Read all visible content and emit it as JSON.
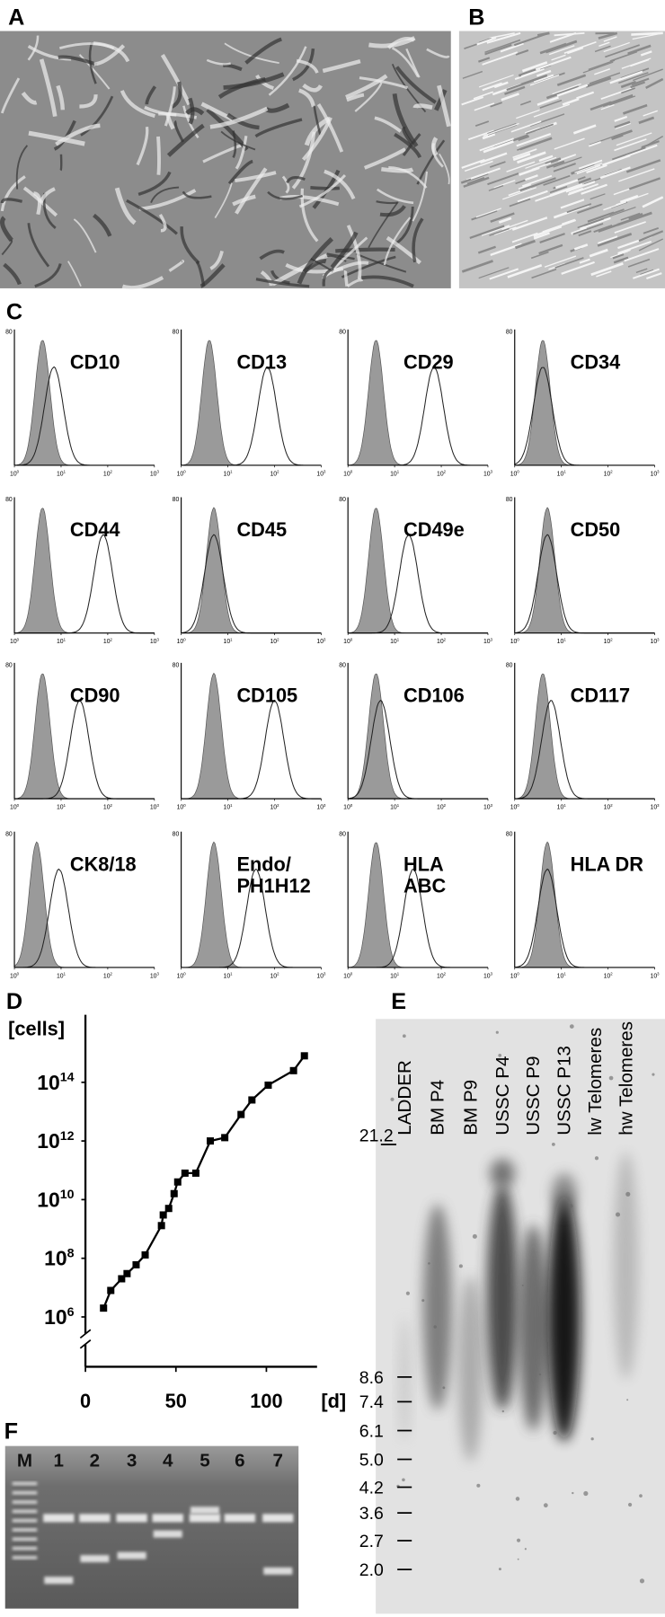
{
  "panel_labels": [
    "A",
    "B",
    "C",
    "D",
    "E",
    "F"
  ],
  "flow": {
    "y_tick": "80",
    "x_ticks": [
      {
        "value": 1,
        "label": "10",
        "exponent": "0"
      },
      {
        "value": 10,
        "label": "10",
        "exponent": "1"
      },
      {
        "value": 100,
        "label": "10",
        "exponent": "2"
      },
      {
        "value": 1000,
        "label": "10",
        "exponent": "3"
      }
    ],
    "panels": [
      {
        "marker": [
          "CD10"
        ],
        "peaks": [
          4,
          7
        ]
      },
      {
        "marker": [
          "CD13"
        ],
        "peaks": [
          4,
          70
        ]
      },
      {
        "marker": [
          "CD29"
        ],
        "peaks": [
          4,
          70
        ]
      },
      {
        "marker": [
          "CD34"
        ],
        "peaks": [
          4,
          4
        ]
      },
      {
        "marker": [
          "CD44"
        ],
        "peaks": [
          4,
          80
        ]
      },
      {
        "marker": [
          "CD45"
        ],
        "peaks": [
          5,
          5
        ]
      },
      {
        "marker": [
          "CD49e"
        ],
        "peaks": [
          4,
          20
        ]
      },
      {
        "marker": [
          "CD50"
        ],
        "peaks": [
          5,
          5
        ]
      },
      {
        "marker": [
          "CD90"
        ],
        "peaks": [
          4,
          25
        ]
      },
      {
        "marker": [
          "CD105"
        ],
        "peaks": [
          5,
          100
        ]
      },
      {
        "marker": [
          "CD106"
        ],
        "peaks": [
          4,
          5
        ]
      },
      {
        "marker": [
          "CD117"
        ],
        "peaks": [
          4,
          6
        ]
      },
      {
        "marker": [
          "CK8/18"
        ],
        "peaks": [
          3,
          9
        ]
      },
      {
        "marker": [
          "Endo/",
          "PH1H12"
        ],
        "peaks": [
          5,
          40
        ]
      },
      {
        "marker": [
          "HLA",
          "ABC"
        ],
        "peaks": [
          4,
          25
        ]
      },
      {
        "marker": [
          "HLA DR"
        ],
        "peaks": [
          5,
          5
        ]
      }
    ]
  },
  "chart_data": {
    "type": "line",
    "y_label": "[cells]",
    "x_label": "[d]",
    "log_scale": true,
    "color": "#000000",
    "x": [
      10,
      14,
      20,
      23,
      28,
      33,
      42,
      43,
      46,
      49,
      51,
      55,
      61,
      69,
      77,
      86,
      92,
      101,
      115,
      121
    ],
    "values": [
      2000000.0,
      8000000.0,
      20000000.0,
      30000000.0,
      60000000.0,
      130000000.0,
      1300000000.0,
      3000000000.0,
      5000000000.0,
      16000000000.0,
      40000000000.0,
      80000000000.0,
      80000000000.0,
      1000000000000.0,
      1300000000000.0,
      8000000000000.0,
      25000000000000.0,
      80000000000000.0,
      250000000000000.0,
      800000000000000.0
    ],
    "xlim": [
      0,
      128
    ],
    "xticks": [
      0,
      50,
      100
    ],
    "ylim": [
      20000,
      2e+16
    ],
    "yticks": [
      {
        "value": 1000000,
        "label": "10",
        "exponent": "6"
      },
      {
        "value": 100000000,
        "label": "10",
        "exponent": "8"
      },
      {
        "value": 10000000000,
        "label": "10",
        "exponent": "10"
      },
      {
        "value": 1000000000000,
        "label": "10",
        "exponent": "12"
      },
      {
        "value": 100000000000000,
        "label": "10",
        "exponent": "14"
      }
    ]
  },
  "gel_e": {
    "lanes": [
      "LADDER",
      "BM P4",
      "BM P9",
      "USSC P4",
      "USSC P9",
      "USSC P13",
      "lw Telomeres",
      "hw Telomeres"
    ],
    "sizes": [
      "21.2",
      "8.6",
      "7.4",
      "6.1",
      "5.0",
      "4.2",
      "3.6",
      "2.7",
      "2.0"
    ]
  },
  "gel_f": {
    "lanes": [
      "M",
      "1",
      "2",
      "3",
      "4",
      "5",
      "6",
      "7"
    ]
  }
}
